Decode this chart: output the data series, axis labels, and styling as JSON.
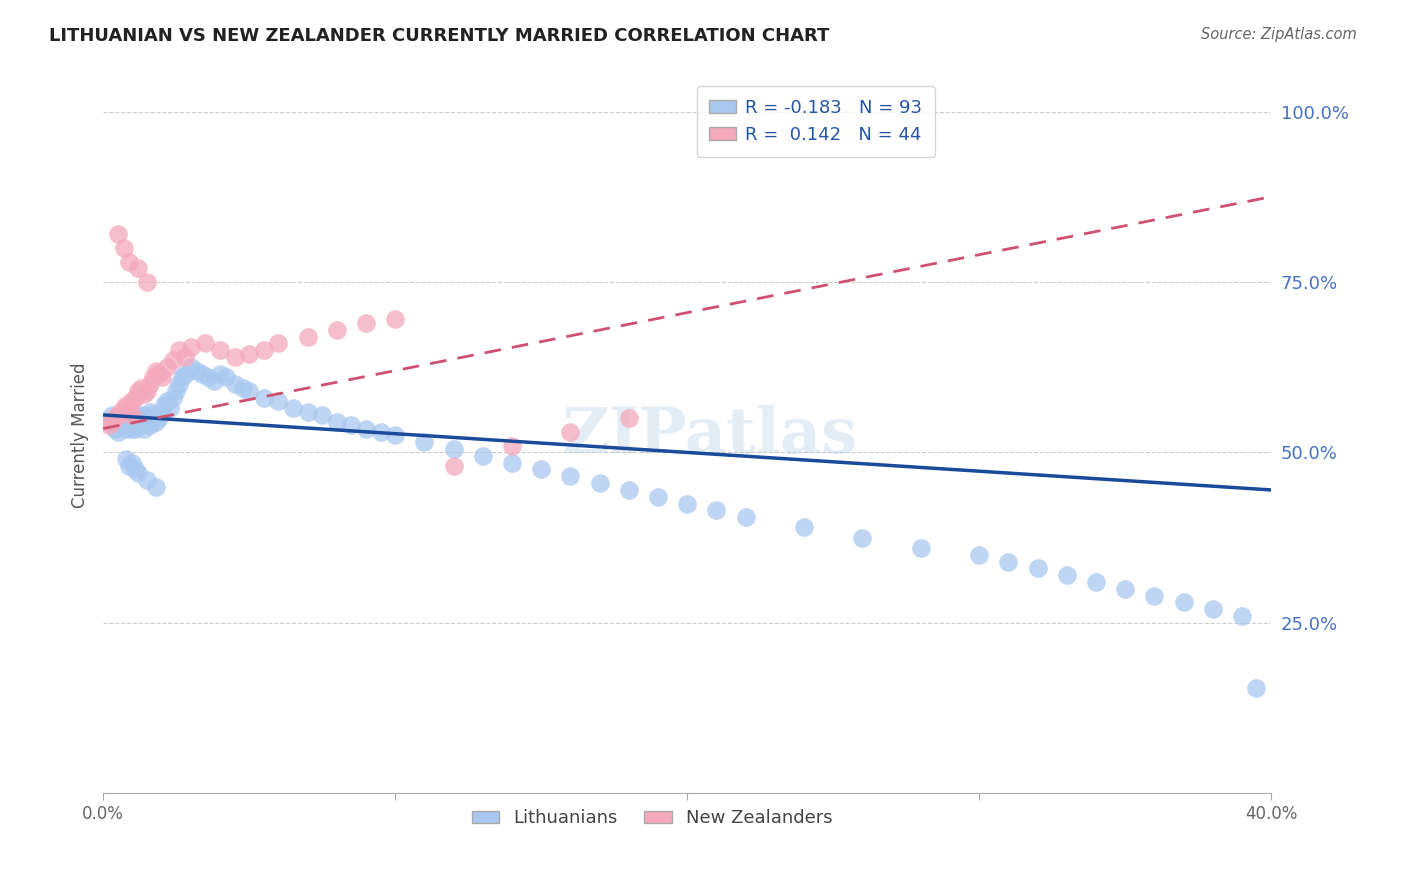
{
  "title": "LITHUANIAN VS NEW ZEALANDER CURRENTLY MARRIED CORRELATION CHART",
  "source_text": "Source: ZipAtlas.com",
  "ylabel": "Currently Married",
  "xlim": [
    0.0,
    0.4
  ],
  "ylim": [
    0.0,
    1.05
  ],
  "blue_R": -0.183,
  "blue_N": 93,
  "pink_R": 0.142,
  "pink_N": 44,
  "blue_color": "#A8C8F0",
  "pink_color": "#F4A8BC",
  "blue_line_color": "#1A4A9A",
  "pink_line_color": "#D05070",
  "watermark": "ZIPatlas",
  "blue_trend_x0": 0.0,
  "blue_trend_y0": 0.555,
  "blue_trend_x1": 0.4,
  "blue_trend_y1": 0.445,
  "pink_trend_x0": 0.0,
  "pink_trend_y0": 0.535,
  "pink_trend_x1": 0.4,
  "pink_trend_y1": 0.875,
  "blue_scatter_x": [
    0.002,
    0.003,
    0.004,
    0.005,
    0.005,
    0.006,
    0.006,
    0.007,
    0.007,
    0.008,
    0.008,
    0.009,
    0.009,
    0.01,
    0.01,
    0.01,
    0.011,
    0.011,
    0.012,
    0.012,
    0.013,
    0.013,
    0.014,
    0.014,
    0.015,
    0.015,
    0.016,
    0.016,
    0.017,
    0.018,
    0.019,
    0.02,
    0.021,
    0.022,
    0.023,
    0.024,
    0.025,
    0.026,
    0.027,
    0.028,
    0.03,
    0.032,
    0.034,
    0.036,
    0.038,
    0.04,
    0.042,
    0.045,
    0.048,
    0.05,
    0.055,
    0.06,
    0.065,
    0.07,
    0.075,
    0.08,
    0.085,
    0.09,
    0.095,
    0.1,
    0.11,
    0.12,
    0.13,
    0.14,
    0.15,
    0.16,
    0.17,
    0.18,
    0.19,
    0.2,
    0.21,
    0.22,
    0.24,
    0.26,
    0.28,
    0.3,
    0.31,
    0.32,
    0.33,
    0.34,
    0.35,
    0.36,
    0.37,
    0.38,
    0.39,
    0.395,
    0.01,
    0.012,
    0.015,
    0.018,
    0.008,
    0.009,
    0.011
  ],
  "blue_scatter_y": [
    0.545,
    0.555,
    0.535,
    0.55,
    0.53,
    0.54,
    0.555,
    0.545,
    0.55,
    0.535,
    0.545,
    0.55,
    0.54,
    0.555,
    0.535,
    0.545,
    0.54,
    0.535,
    0.55,
    0.555,
    0.545,
    0.54,
    0.555,
    0.535,
    0.55,
    0.545,
    0.56,
    0.54,
    0.555,
    0.545,
    0.55,
    0.56,
    0.57,
    0.575,
    0.565,
    0.58,
    0.59,
    0.6,
    0.61,
    0.615,
    0.625,
    0.62,
    0.615,
    0.61,
    0.605,
    0.615,
    0.61,
    0.6,
    0.595,
    0.59,
    0.58,
    0.575,
    0.565,
    0.56,
    0.555,
    0.545,
    0.54,
    0.535,
    0.53,
    0.525,
    0.515,
    0.505,
    0.495,
    0.485,
    0.475,
    0.465,
    0.455,
    0.445,
    0.435,
    0.425,
    0.415,
    0.405,
    0.39,
    0.375,
    0.36,
    0.35,
    0.34,
    0.33,
    0.32,
    0.31,
    0.3,
    0.29,
    0.28,
    0.27,
    0.26,
    0.155,
    0.485,
    0.47,
    0.46,
    0.45,
    0.49,
    0.48,
    0.475
  ],
  "pink_scatter_x": [
    0.002,
    0.003,
    0.004,
    0.005,
    0.006,
    0.007,
    0.008,
    0.009,
    0.01,
    0.01,
    0.011,
    0.012,
    0.013,
    0.014,
    0.015,
    0.016,
    0.017,
    0.018,
    0.019,
    0.02,
    0.022,
    0.024,
    0.026,
    0.028,
    0.03,
    0.035,
    0.04,
    0.045,
    0.05,
    0.055,
    0.06,
    0.07,
    0.08,
    0.09,
    0.1,
    0.12,
    0.14,
    0.16,
    0.18,
    0.005,
    0.007,
    0.009,
    0.012,
    0.015
  ],
  "pink_scatter_y": [
    0.54,
    0.545,
    0.55,
    0.555,
    0.56,
    0.565,
    0.57,
    0.56,
    0.555,
    0.575,
    0.58,
    0.59,
    0.595,
    0.585,
    0.59,
    0.6,
    0.61,
    0.62,
    0.615,
    0.61,
    0.625,
    0.635,
    0.65,
    0.64,
    0.655,
    0.66,
    0.65,
    0.64,
    0.645,
    0.65,
    0.66,
    0.67,
    0.68,
    0.69,
    0.695,
    0.48,
    0.51,
    0.53,
    0.55,
    0.82,
    0.8,
    0.78,
    0.77,
    0.75
  ]
}
